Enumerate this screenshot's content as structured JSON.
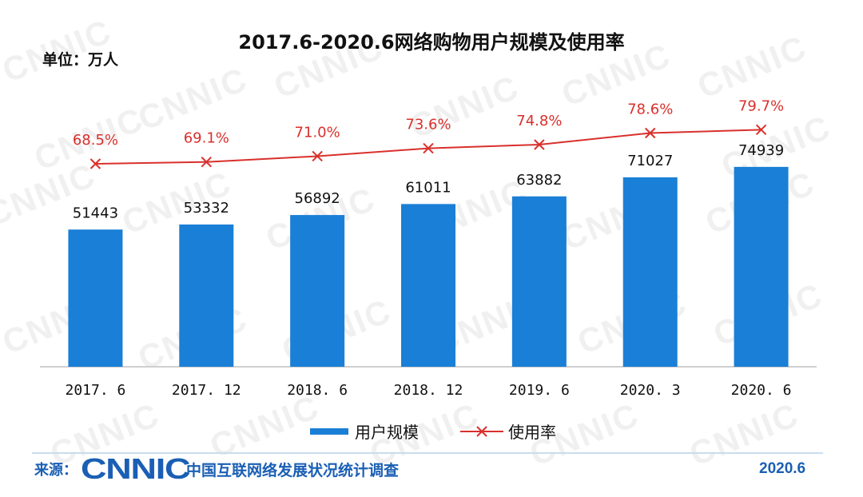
{
  "title": "2017.6-2020.6网络购物用户规模及使用率",
  "unit_label": "单位：万人",
  "watermark": "CNNIC",
  "colors": {
    "bar": "#1a7fd6",
    "line": "#d9302c",
    "footer": "#1a5fb4"
  },
  "chart_data": {
    "type": "bar",
    "title": "2017.6-2020.6网络购物用户规模及使用率",
    "unit": "单位：万人",
    "categories": [
      "2017. 6",
      "2017. 12",
      "2018. 6",
      "2018. 12",
      "2019. 6",
      "2020. 3",
      "2020. 6"
    ],
    "series": [
      {
        "name": "用户规模",
        "type": "bar",
        "values": [
          51443,
          53332,
          56892,
          61011,
          63882,
          71027,
          74939
        ],
        "labels": [
          "51443",
          "53332",
          "56892",
          "61011",
          "63882",
          "71027",
          "74939"
        ]
      },
      {
        "name": "使用率",
        "type": "line",
        "marker": "x",
        "values": [
          68.5,
          69.1,
          71.0,
          73.6,
          74.8,
          78.6,
          79.7
        ],
        "labels": [
          "68.5%",
          "69.1%",
          "71.0%",
          "73.6%",
          "74.8%",
          "78.6%",
          "79.7%"
        ]
      }
    ],
    "legend_position": "bottom-center",
    "grid": false
  },
  "legend": {
    "bar_label": "用户规模",
    "line_label": "使用率"
  },
  "footer": {
    "source_label": "来源：",
    "logo_text": "CNNIC",
    "source_name": "中国互联网络发展状况统计调查",
    "date": "2020.6"
  }
}
